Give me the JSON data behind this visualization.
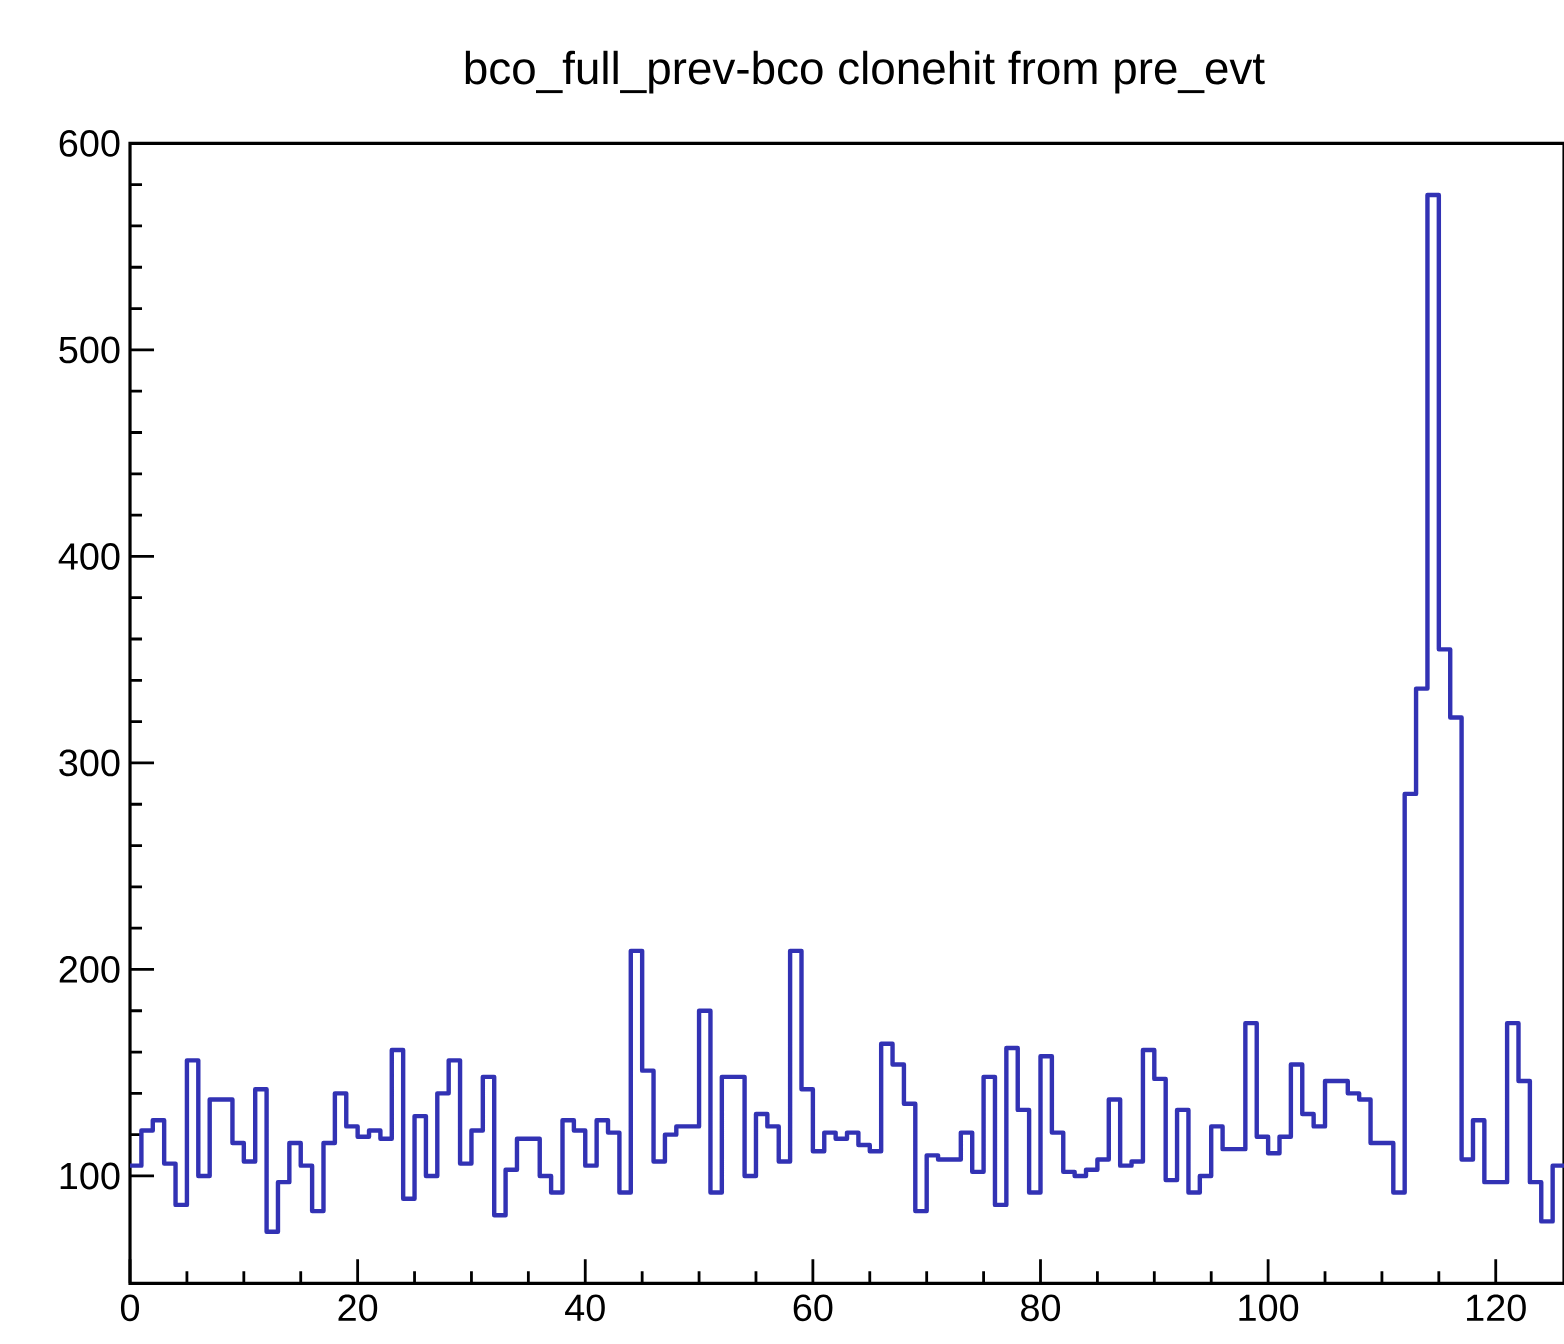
{
  "chart_data": {
    "type": "histogram",
    "title": "bco_full_prev-bco clonehit from pre_evt",
    "color": "#3232b4",
    "bins": [
      0,
      1,
      2,
      3,
      4,
      5,
      6,
      7,
      8,
      9,
      10,
      11,
      12,
      13,
      14,
      15,
      16,
      17,
      18,
      19,
      20,
      21,
      22,
      23,
      24,
      25,
      26,
      27,
      28,
      29,
      30,
      31,
      32,
      33,
      34,
      35,
      36,
      37,
      38,
      39,
      40,
      41,
      42,
      43,
      44,
      45,
      46,
      47,
      48,
      49,
      50,
      51,
      52,
      53,
      54,
      55,
      56,
      57,
      58,
      59,
      60,
      61,
      62,
      63,
      64,
      65,
      66,
      67,
      68,
      69,
      70,
      71,
      72,
      73,
      74,
      75,
      76,
      77,
      78,
      79,
      80,
      81,
      82,
      83,
      84,
      85,
      86,
      87,
      88,
      89,
      90,
      91,
      92,
      93,
      94,
      95,
      96,
      97,
      98,
      99,
      100,
      101,
      102,
      103,
      104,
      105,
      106,
      107,
      108,
      109,
      110,
      111,
      112,
      113,
      114,
      115,
      116,
      117,
      118,
      119,
      120,
      121,
      122,
      123,
      124,
      125,
      126
    ],
    "values": [
      105,
      122,
      127,
      106,
      86,
      156,
      100,
      137,
      137,
      116,
      107,
      142,
      73,
      97,
      116,
      105,
      83,
      116,
      140,
      124,
      119,
      122,
      118,
      161,
      89,
      129,
      100,
      140,
      156,
      106,
      122,
      148,
      81,
      103,
      118,
      118,
      100,
      92,
      127,
      122,
      105,
      127,
      121,
      92,
      209,
      151,
      107,
      120,
      124,
      124,
      180,
      92,
      148,
      148,
      100,
      130,
      124,
      107,
      209,
      142,
      112,
      121,
      118,
      121,
      115,
      112,
      164,
      154,
      135,
      83,
      110,
      108,
      108,
      121,
      102,
      148,
      86,
      162,
      132,
      92,
      158,
      121,
      102,
      100,
      103,
      108,
      137,
      105,
      107,
      161,
      147,
      98,
      132,
      92,
      100,
      124,
      113,
      113,
      174,
      119,
      111,
      119,
      154,
      130,
      124,
      146,
      146,
      140,
      137,
      116,
      116,
      92,
      285,
      336,
      575,
      355,
      322,
      108,
      127,
      97,
      97,
      174,
      146,
      97,
      78,
      105
    ],
    "xlim": [
      0,
      126
    ],
    "ylim": [
      48,
      600
    ],
    "xticks": [
      0,
      20,
      40,
      60,
      80,
      100,
      120
    ],
    "yticks": [
      100,
      200,
      300,
      400,
      500,
      600
    ]
  }
}
